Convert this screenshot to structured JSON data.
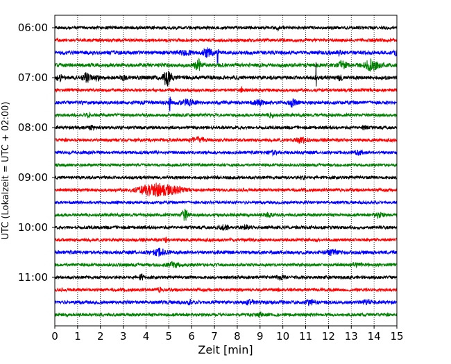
{
  "chart_data": {
    "type": "line",
    "title": "",
    "xlabel": "Zeit  [min]",
    "ylabel": "UTC (Lokalzeit = UTC + 02:00)",
    "xlim": [
      0,
      15
    ],
    "x_ticks": [
      "0",
      "1",
      "2",
      "3",
      "4",
      "5",
      "6",
      "7",
      "8",
      "9",
      "10",
      "11",
      "12",
      "13",
      "14",
      "15"
    ],
    "y_tick_labels": [
      "06:00",
      "07:00",
      "08:00",
      "09:00",
      "10:00",
      "11:00"
    ],
    "grid": "vertical dotted",
    "trace_colors": [
      "#000000",
      "#ff0000",
      "#0000ff",
      "#008000"
    ],
    "trace_interval_min": 15,
    "traces": [
      {
        "start": "06:00",
        "color": "#000000",
        "amp": 1.0,
        "events": [
          {
            "x": 9.8,
            "a": 3,
            "w": 0.05
          }
        ]
      },
      {
        "start": "06:15",
        "color": "#ff0000",
        "amp": 1.0,
        "events": []
      },
      {
        "start": "06:30",
        "color": "#0000ff",
        "amp": 1.2,
        "events": [
          {
            "x": 5.7,
            "a": 3,
            "w": 0.3
          },
          {
            "x": 6.7,
            "a": 6,
            "w": 0.2
          },
          {
            "x": 7.15,
            "a": 28,
            "w": 0.03
          },
          {
            "x": 12.5,
            "a": 5,
            "w": 0.1
          },
          {
            "x": 15,
            "a": 6,
            "w": 0.1
          }
        ]
      },
      {
        "start": "06:45",
        "color": "#008000",
        "amp": 1.2,
        "events": [
          {
            "x": 6.3,
            "a": 8,
            "w": 0.15
          },
          {
            "x": 12.6,
            "a": 5,
            "w": 0.2
          },
          {
            "x": 13.9,
            "a": 8,
            "w": 0.3
          }
        ]
      },
      {
        "start": "07:00",
        "color": "#000000",
        "amp": 1.2,
        "events": [
          {
            "x": 0.2,
            "a": 6,
            "w": 0.1
          },
          {
            "x": 1.4,
            "a": 8,
            "w": 0.15
          },
          {
            "x": 1.85,
            "a": 5,
            "w": 0.1
          },
          {
            "x": 3.0,
            "a": 3,
            "w": 0.1
          },
          {
            "x": 4.9,
            "a": 9,
            "w": 0.15
          },
          {
            "x": 5.0,
            "a": 5,
            "w": 0.2
          },
          {
            "x": 11.45,
            "a": 32,
            "w": 0.02
          },
          {
            "x": 12.5,
            "a": 4,
            "w": 0.1
          }
        ]
      },
      {
        "start": "07:15",
        "color": "#ff0000",
        "amp": 1.0,
        "events": [
          {
            "x": 8.2,
            "a": 3,
            "w": 0.1
          }
        ]
      },
      {
        "start": "07:30",
        "color": "#0000ff",
        "amp": 1.1,
        "events": [
          {
            "x": 5.05,
            "a": 16,
            "w": 0.05
          },
          {
            "x": 5.8,
            "a": 4,
            "w": 0.3
          },
          {
            "x": 10.4,
            "a": 7,
            "w": 0.15
          },
          {
            "x": 9.0,
            "a": 3,
            "w": 0.3
          }
        ]
      },
      {
        "start": "07:45",
        "color": "#008000",
        "amp": 1.0,
        "events": [
          {
            "x": 1.5,
            "a": 4,
            "w": 0.1
          },
          {
            "x": 9.5,
            "a": 4,
            "w": 0.1
          }
        ]
      },
      {
        "start": "08:00",
        "color": "#000000",
        "amp": 1.0,
        "events": [
          {
            "x": 1.6,
            "a": 4,
            "w": 0.1
          },
          {
            "x": 13.6,
            "a": 5,
            "w": 0.1
          }
        ]
      },
      {
        "start": "08:15",
        "color": "#ff0000",
        "amp": 1.0,
        "events": [
          {
            "x": 6.3,
            "a": 4,
            "w": 0.3
          },
          {
            "x": 10.8,
            "a": 4,
            "w": 0.25
          }
        ]
      },
      {
        "start": "08:30",
        "color": "#0000ff",
        "amp": 1.0,
        "events": [
          {
            "x": 9.6,
            "a": 3,
            "w": 0.2
          },
          {
            "x": 13.3,
            "a": 3,
            "w": 0.2
          }
        ]
      },
      {
        "start": "08:45",
        "color": "#008000",
        "amp": 0.9,
        "events": []
      },
      {
        "start": "09:00",
        "color": "#000000",
        "amp": 1.0,
        "events": [
          {
            "x": 10.9,
            "a": 3,
            "w": 0.1
          }
        ]
      },
      {
        "start": "09:15",
        "color": "#ff0000",
        "amp": 1.0,
        "events": [
          {
            "x": 4.4,
            "a": 10,
            "w": 0.7
          },
          {
            "x": 5.3,
            "a": 3,
            "w": 0.4
          }
        ]
      },
      {
        "start": "09:30",
        "color": "#0000ff",
        "amp": 0.9,
        "events": []
      },
      {
        "start": "09:45",
        "color": "#008000",
        "amp": 1.0,
        "events": [
          {
            "x": 5.7,
            "a": 9,
            "w": 0.15
          },
          {
            "x": 9.4,
            "a": 3,
            "w": 0.2
          },
          {
            "x": 14.2,
            "a": 3,
            "w": 0.2
          }
        ]
      },
      {
        "start": "10:00",
        "color": "#000000",
        "amp": 1.0,
        "events": [
          {
            "x": 7.4,
            "a": 3,
            "w": 0.2
          },
          {
            "x": 8.4,
            "a": 3,
            "w": 0.2
          }
        ]
      },
      {
        "start": "10:15",
        "color": "#ff0000",
        "amp": 1.0,
        "events": [
          {
            "x": 4.9,
            "a": 4,
            "w": 0.1
          }
        ]
      },
      {
        "start": "10:30",
        "color": "#0000ff",
        "amp": 1.1,
        "events": [
          {
            "x": 4.6,
            "a": 5,
            "w": 0.3
          },
          {
            "x": 12.1,
            "a": 3,
            "w": 0.3
          }
        ]
      },
      {
        "start": "10:45",
        "color": "#008000",
        "amp": 1.0,
        "events": [
          {
            "x": 5.2,
            "a": 3,
            "w": 0.3
          },
          {
            "x": 13.2,
            "a": 3,
            "w": 0.2
          }
        ]
      },
      {
        "start": "11:00",
        "color": "#000000",
        "amp": 1.0,
        "events": [
          {
            "x": 3.8,
            "a": 4,
            "w": 0.1
          },
          {
            "x": 9.9,
            "a": 3,
            "w": 0.2
          }
        ]
      },
      {
        "start": "11:15",
        "color": "#ff0000",
        "amp": 1.0,
        "events": [
          {
            "x": 4.6,
            "a": 3,
            "w": 0.1
          }
        ]
      },
      {
        "start": "11:30",
        "color": "#0000ff",
        "amp": 1.1,
        "events": [
          {
            "x": 5.9,
            "a": 4,
            "w": 0.1
          },
          {
            "x": 8.6,
            "a": 3,
            "w": 0.2
          },
          {
            "x": 11.2,
            "a": 3,
            "w": 0.2
          },
          {
            "x": 13.7,
            "a": 3,
            "w": 0.2
          }
        ]
      },
      {
        "start": "11:45",
        "color": "#008000",
        "amp": 1.0,
        "events": [
          {
            "x": 9.0,
            "a": 3,
            "w": 0.1
          }
        ]
      }
    ]
  }
}
